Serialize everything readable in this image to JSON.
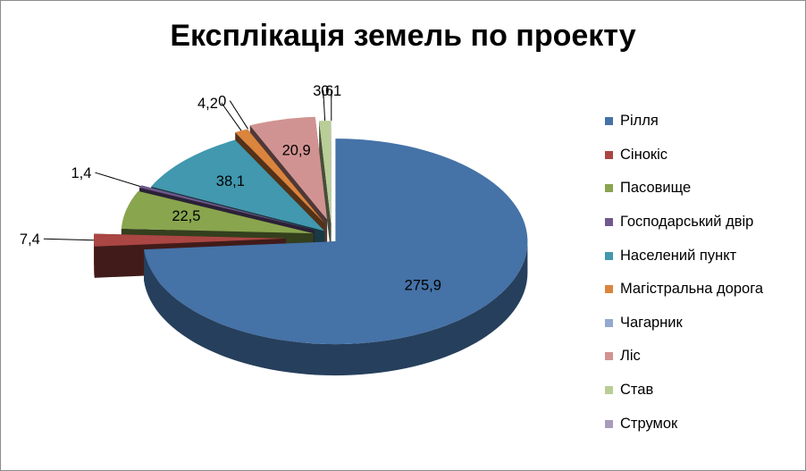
{
  "chart_data": {
    "type": "pie",
    "title": "Експлікація земель по проекту",
    "categories": [
      "Рілля",
      "Сінокіс",
      "Пасовище",
      "Господарський двір",
      "Населений пункт",
      "Магістральна дорога",
      "Чагарник",
      "Ліс",
      "Став",
      "Струмок"
    ],
    "values": [
      275.9,
      7.4,
      22.5,
      1.4,
      38.1,
      4.2,
      0,
      20.9,
      3.6,
      0.1
    ],
    "labels": [
      "275,9",
      "7,4",
      "22,5",
      "1,4",
      "38,1",
      "4,2",
      "0",
      "20,9",
      "3,6",
      "0,1"
    ],
    "colors": [
      "#4572A7",
      "#AA4643",
      "#89A54E",
      "#71588F",
      "#4198AF",
      "#DB843D",
      "#93A9CF",
      "#D19392",
      "#B9CD96",
      "#A99BBD"
    ],
    "style": "3d-exploded",
    "legend": "right",
    "grid": false
  }
}
